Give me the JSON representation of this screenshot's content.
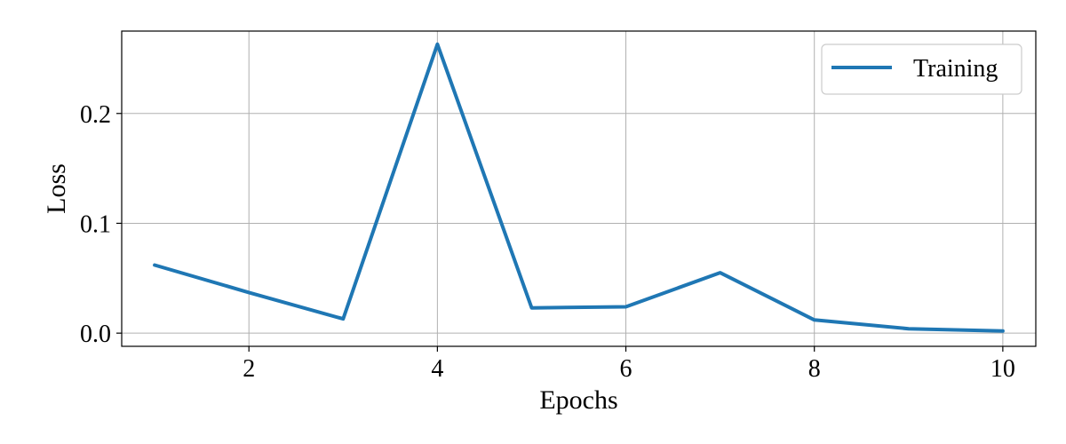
{
  "chart_data": {
    "type": "line",
    "title": "",
    "xlabel": "Epochs",
    "ylabel": "Loss",
    "xlim": [
      0.65,
      10.35
    ],
    "ylim": [
      -0.012,
      0.275
    ],
    "xticks": [
      2,
      4,
      6,
      8,
      10
    ],
    "yticks": [
      0.0,
      0.1,
      0.2
    ],
    "xtick_labels": [
      "2",
      "4",
      "6",
      "8",
      "10"
    ],
    "ytick_labels": [
      "0.0",
      "0.1",
      "0.2"
    ],
    "grid": true,
    "legend": "top-right",
    "series": [
      {
        "name": "Training",
        "color": "#1f77b4",
        "x": [
          1,
          2,
          3,
          4,
          5,
          6,
          7,
          8,
          9,
          10
        ],
        "y": [
          0.062,
          0.037,
          0.013,
          0.263,
          0.023,
          0.024,
          0.055,
          0.012,
          0.004,
          0.002
        ]
      }
    ]
  }
}
